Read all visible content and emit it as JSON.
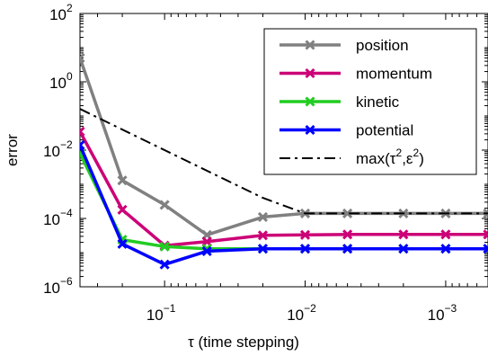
{
  "chart_data": {
    "type": "line",
    "xlabel": "τ (time stepping)",
    "ylabel": "error",
    "x_scale": "log",
    "x_reversed": true,
    "y_scale": "log",
    "xlim": [
      0.4,
      0.0005
    ],
    "ylim": [
      1e-06,
      100
    ],
    "x": [
      0.4,
      0.2,
      0.1,
      0.05,
      0.02,
      0.01,
      0.005,
      0.002,
      0.001,
      0.0005
    ],
    "x_ticks": [
      {
        "value": 0.1,
        "base": "10",
        "exp": "−1"
      },
      {
        "value": 0.01,
        "base": "10",
        "exp": "−2"
      },
      {
        "value": 0.001,
        "base": "10",
        "exp": "−3"
      }
    ],
    "y_ticks": [
      {
        "value": 100,
        "base": "10",
        "exp": "2"
      },
      {
        "value": 1,
        "base": "10",
        "exp": "0"
      },
      {
        "value": 0.01,
        "base": "10",
        "exp": "−2"
      },
      {
        "value": 0.0001,
        "base": "10",
        "exp": "−4"
      },
      {
        "value": 1e-06,
        "base": "10",
        "exp": "−6"
      }
    ],
    "series": [
      {
        "name": "position",
        "color": "#808080",
        "marker": "x",
        "dash": "solid",
        "values": [
          5,
          0.0013,
          0.00025,
          3.3e-05,
          0.00011,
          0.00014,
          0.00014,
          0.00014,
          0.00014,
          0.00014
        ]
      },
      {
        "name": "momentum",
        "color": "#cc0077",
        "marker": "x",
        "dash": "solid",
        "values": [
          0.035,
          0.00018,
          1.6e-05,
          2.1e-05,
          3.2e-05,
          3.3e-05,
          3.4e-05,
          3.4e-05,
          3.4e-05,
          3.4e-05
        ]
      },
      {
        "name": "kinetic",
        "color": "#22cc22",
        "marker": "x",
        "dash": "solid",
        "values": [
          0.008,
          2.4e-05,
          1.5e-05,
          1.3e-05,
          1.3e-05,
          1.3e-05,
          1.3e-05,
          1.3e-05,
          1.3e-05,
          1.3e-05
        ]
      },
      {
        "name": "potential",
        "color": "#0000ff",
        "marker": "x",
        "dash": "solid",
        "values": [
          0.014,
          1.8e-05,
          4.5e-06,
          1.1e-05,
          1.3e-05,
          1.3e-05,
          1.3e-05,
          1.3e-05,
          1.3e-05,
          1.3e-05
        ]
      },
      {
        "name": "max(τ²,ε²)",
        "legend_base": "max(τ",
        "legend_mid": ",ε",
        "legend_end": ")",
        "legend_sup": "2",
        "color": "#000000",
        "marker": "none",
        "dash": "dashdot",
        "values": [
          0.16,
          0.04,
          0.01,
          0.0025,
          0.0004,
          0.00014,
          0.00014,
          0.00014,
          0.00014,
          0.00014
        ]
      }
    ],
    "grid": false,
    "legend_position": "top-right"
  }
}
